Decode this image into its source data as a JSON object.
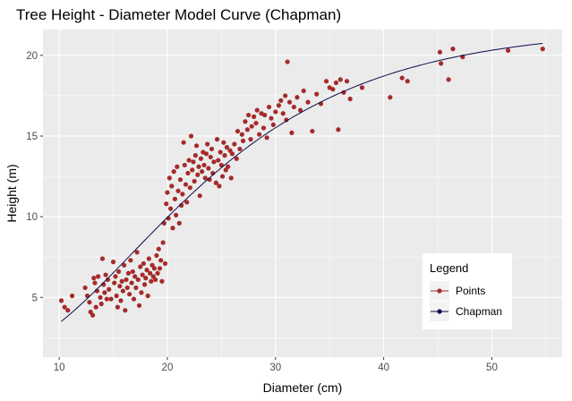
{
  "chart_data": {
    "type": "scatter",
    "title": "Tree Height - Diameter Model Curve (Chapman)",
    "xlabel": "Diameter (cm)",
    "ylabel": "Height (m)",
    "xlim": [
      8.5,
      56.5
    ],
    "ylim": [
      1.3,
      21.6
    ],
    "x_ticks": [
      10,
      20,
      30,
      40,
      50
    ],
    "y_ticks": [
      5,
      10,
      15,
      20
    ],
    "grid": true,
    "legend": {
      "title": "Legend",
      "placement": "bottom-right",
      "entries": [
        {
          "label": "Points",
          "color": "#a52a2a"
        },
        {
          "label": "Chapman",
          "color": "#0b0b4a"
        }
      ]
    },
    "colors": {
      "panel": "#ebebeb",
      "grid": "#ffffff",
      "points": "#a52a2a",
      "curve": "#0b0b4a"
    },
    "series": [
      {
        "name": "Points",
        "kind": "scatter",
        "points": [
          [
            10.2,
            4.8
          ],
          [
            10.5,
            4.4
          ],
          [
            10.8,
            4.2
          ],
          [
            11.2,
            5.1
          ],
          [
            12.4,
            5.6
          ],
          [
            12.6,
            5.1
          ],
          [
            12.8,
            4.7
          ],
          [
            12.9,
            4.1
          ],
          [
            13.1,
            3.9
          ],
          [
            13.2,
            6.2
          ],
          [
            13.3,
            5.9
          ],
          [
            13.4,
            4.4
          ],
          [
            13.5,
            5.4
          ],
          [
            13.6,
            6.3
          ],
          [
            13.8,
            5.0
          ],
          [
            13.9,
            4.6
          ],
          [
            14.0,
            7.4
          ],
          [
            14.1,
            5.8
          ],
          [
            14.2,
            5.3
          ],
          [
            14.3,
            6.4
          ],
          [
            14.4,
            4.9
          ],
          [
            14.5,
            6.1
          ],
          [
            14.6,
            5.5
          ],
          [
            14.8,
            4.9
          ],
          [
            15.0,
            7.2
          ],
          [
            15.1,
            5.9
          ],
          [
            15.2,
            6.3
          ],
          [
            15.3,
            5.1
          ],
          [
            15.4,
            4.4
          ],
          [
            15.5,
            6.6
          ],
          [
            15.6,
            5.7
          ],
          [
            15.7,
            4.8
          ],
          [
            15.8,
            6.0
          ],
          [
            15.9,
            5.4
          ],
          [
            16.0,
            7.0
          ],
          [
            16.1,
            4.2
          ],
          [
            16.2,
            6.1
          ],
          [
            16.3,
            5.6
          ],
          [
            16.4,
            6.5
          ],
          [
            16.5,
            5.2
          ],
          [
            16.6,
            7.3
          ],
          [
            16.7,
            5.9
          ],
          [
            16.8,
            6.6
          ],
          [
            16.9,
            4.9
          ],
          [
            17.0,
            6.3
          ],
          [
            17.1,
            5.6
          ],
          [
            17.2,
            7.8
          ],
          [
            17.3,
            6.1
          ],
          [
            17.4,
            4.5
          ],
          [
            17.5,
            6.9
          ],
          [
            17.6,
            5.3
          ],
          [
            17.7,
            6.4
          ],
          [
            17.8,
            7.1
          ],
          [
            17.9,
            5.8
          ],
          [
            18.0,
            6.2
          ],
          [
            18.1,
            6.7
          ],
          [
            18.2,
            5.1
          ],
          [
            18.3,
            7.4
          ],
          [
            18.4,
            6.5
          ],
          [
            18.5,
            6.0
          ],
          [
            18.6,
            7.0
          ],
          [
            18.7,
            6.3
          ],
          [
            18.8,
            6.8
          ],
          [
            18.9,
            6.1
          ],
          [
            19.0,
            7.6
          ],
          [
            19.1,
            6.5
          ],
          [
            19.2,
            8.0
          ],
          [
            19.3,
            6.8
          ],
          [
            19.4,
            7.3
          ],
          [
            19.5,
            6.0
          ],
          [
            19.6,
            8.4
          ],
          [
            19.7,
            9.6
          ],
          [
            19.8,
            7.1
          ],
          [
            19.9,
            10.8
          ],
          [
            20.0,
            11.5
          ],
          [
            20.1,
            9.9
          ],
          [
            20.2,
            12.4
          ],
          [
            20.3,
            10.5
          ],
          [
            20.4,
            11.9
          ],
          [
            20.5,
            9.3
          ],
          [
            20.6,
            12.8
          ],
          [
            20.7,
            11.1
          ],
          [
            20.8,
            10.1
          ],
          [
            20.9,
            13.1
          ],
          [
            21.0,
            11.6
          ],
          [
            21.1,
            9.6
          ],
          [
            21.2,
            12.3
          ],
          [
            21.3,
            10.7
          ],
          [
            21.4,
            11.4
          ],
          [
            21.5,
            14.6
          ],
          [
            21.6,
            13.2
          ],
          [
            21.7,
            12.0
          ],
          [
            21.8,
            10.9
          ],
          [
            21.9,
            12.7
          ],
          [
            22.0,
            13.5
          ],
          [
            22.1,
            11.8
          ],
          [
            22.2,
            15.0
          ],
          [
            22.3,
            12.9
          ],
          [
            22.4,
            13.4
          ],
          [
            22.5,
            12.2
          ],
          [
            22.6,
            13.8
          ],
          [
            22.7,
            14.4
          ],
          [
            22.8,
            12.6
          ],
          [
            22.9,
            13.1
          ],
          [
            23.0,
            11.3
          ],
          [
            23.1,
            13.6
          ],
          [
            23.2,
            12.8
          ],
          [
            23.3,
            14.0
          ],
          [
            23.4,
            13.2
          ],
          [
            23.5,
            12.4
          ],
          [
            23.6,
            13.9
          ],
          [
            23.7,
            14.5
          ],
          [
            23.8,
            13.0
          ],
          [
            23.9,
            12.3
          ],
          [
            24.0,
            13.7
          ],
          [
            24.1,
            14.2
          ],
          [
            24.2,
            12.7
          ],
          [
            24.3,
            13.4
          ],
          [
            24.5,
            12.1
          ],
          [
            24.6,
            14.8
          ],
          [
            24.7,
            13.5
          ],
          [
            24.8,
            11.9
          ],
          [
            24.9,
            14.0
          ],
          [
            25.0,
            13.2
          ],
          [
            25.1,
            12.5
          ],
          [
            25.2,
            14.6
          ],
          [
            25.3,
            13.8
          ],
          [
            25.4,
            12.9
          ],
          [
            25.5,
            14.3
          ],
          [
            25.6,
            13.1
          ],
          [
            25.8,
            14.1
          ],
          [
            25.9,
            12.4
          ],
          [
            26.0,
            13.9
          ],
          [
            26.2,
            14.5
          ],
          [
            26.4,
            13.6
          ],
          [
            26.5,
            15.3
          ],
          [
            26.7,
            14.2
          ],
          [
            26.9,
            15.1
          ],
          [
            27.0,
            14.7
          ],
          [
            27.2,
            15.9
          ],
          [
            27.4,
            15.4
          ],
          [
            27.5,
            16.3
          ],
          [
            27.7,
            14.8
          ],
          [
            27.8,
            15.6
          ],
          [
            28.0,
            16.2
          ],
          [
            28.2,
            15.8
          ],
          [
            28.3,
            16.6
          ],
          [
            28.5,
            15.1
          ],
          [
            28.7,
            16.4
          ],
          [
            28.9,
            15.5
          ],
          [
            29.0,
            16.3
          ],
          [
            29.2,
            14.9
          ],
          [
            29.4,
            16.8
          ],
          [
            29.6,
            16.1
          ],
          [
            29.8,
            15.7
          ],
          [
            30.0,
            16.5
          ],
          [
            30.3,
            16.9
          ],
          [
            30.5,
            17.2
          ],
          [
            30.7,
            16.4
          ],
          [
            30.9,
            17.5
          ],
          [
            31.0,
            16.0
          ],
          [
            31.1,
            19.6
          ],
          [
            31.3,
            17.1
          ],
          [
            31.5,
            15.2
          ],
          [
            31.7,
            16.8
          ],
          [
            32.0,
            17.4
          ],
          [
            32.3,
            16.6
          ],
          [
            32.6,
            17.8
          ],
          [
            33.0,
            17.1
          ],
          [
            33.4,
            15.3
          ],
          [
            33.8,
            17.6
          ],
          [
            34.2,
            17.0
          ],
          [
            34.7,
            18.4
          ],
          [
            35.0,
            18.0
          ],
          [
            35.3,
            17.9
          ],
          [
            35.6,
            18.3
          ],
          [
            35.8,
            15.4
          ],
          [
            36.0,
            18.5
          ],
          [
            36.3,
            17.7
          ],
          [
            36.6,
            18.4
          ],
          [
            36.9,
            17.3
          ],
          [
            38.0,
            18.0
          ],
          [
            40.6,
            17.4
          ],
          [
            41.7,
            18.6
          ],
          [
            42.2,
            18.4
          ],
          [
            45.2,
            20.2
          ],
          [
            45.3,
            19.5
          ],
          [
            46.0,
            18.5
          ],
          [
            46.4,
            20.4
          ],
          [
            47.3,
            19.9
          ],
          [
            51.5,
            20.3
          ],
          [
            54.7,
            20.4
          ]
        ]
      },
      {
        "name": "Chapman",
        "kind": "curve",
        "model": {
          "a": 20.4,
          "b": 0.08,
          "c": 3.8,
          "x_range": [
            10.2,
            54.7
          ]
        }
      }
    ]
  }
}
